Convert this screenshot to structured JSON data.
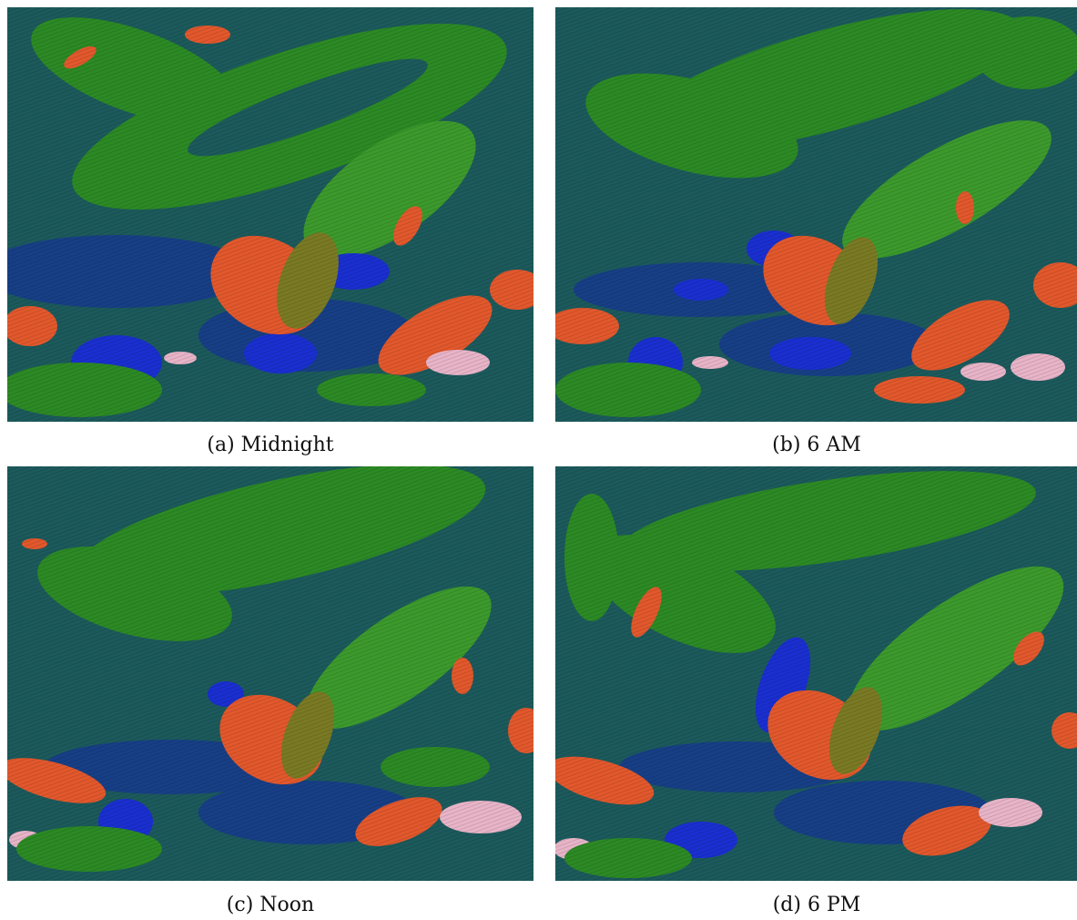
{
  "figure": {
    "panels": [
      {
        "id": "a",
        "caption": "(a) Midnight"
      },
      {
        "id": "b",
        "caption": "(b) 6 AM"
      },
      {
        "id": "c",
        "caption": "(c) Noon"
      },
      {
        "id": "d",
        "caption": "(d) 6 PM"
      }
    ]
  },
  "colors": {
    "teal": "#1c5a5c",
    "dark_blue": "#173f86",
    "blue": "#1a2fd0",
    "green": "#2c8a24",
    "light_green": "#4aa335",
    "orange": "#e2582c",
    "pink": "#e8b4c8",
    "olive": "#7a7a24"
  }
}
